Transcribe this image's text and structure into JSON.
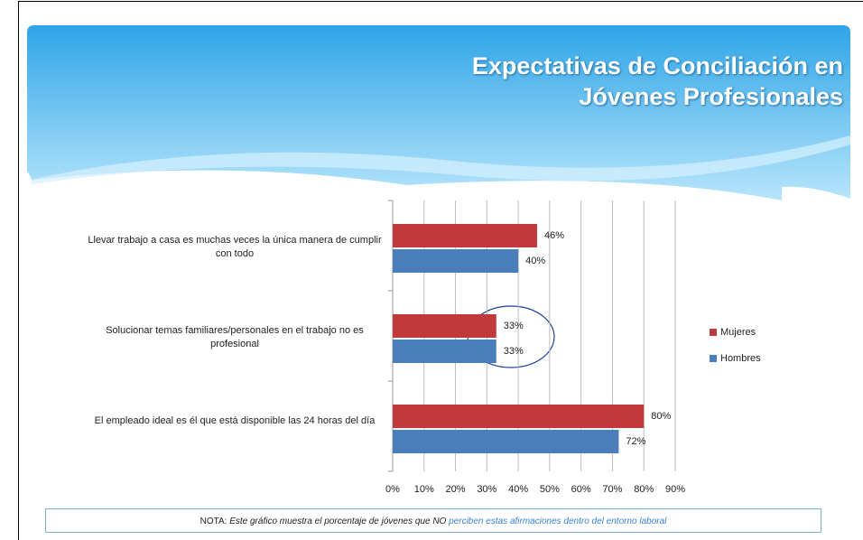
{
  "chart_data": {
    "type": "bar",
    "orientation": "horizontal",
    "title": "Expectativas de Conciliación en Jóvenes Profesionales",
    "categories": [
      "Llevar trabajo a casa es muchas veces la única manera de cumplir con todo",
      "Solucionar temas familiares/personales en el trabajo no es profesional",
      "El empleado ideal es él que está disponible las 24 horas del día"
    ],
    "series": [
      {
        "name": "Mujeres",
        "color": "#c0393b",
        "values": [
          46,
          33,
          80
        ],
        "value_labels": [
          "46%",
          "33%",
          "80%"
        ]
      },
      {
        "name": "Hombres",
        "color": "#4a7ebb",
        "values": [
          40,
          33,
          72
        ],
        "value_labels": [
          "40%",
          "33%",
          "72%"
        ]
      }
    ],
    "xlim": [
      0,
      90
    ],
    "xticks": [
      {
        "value": 0,
        "label": "0%"
      },
      {
        "value": 10,
        "label": "10%"
      },
      {
        "value": 20,
        "label": "20%"
      },
      {
        "value": 30,
        "label": "30%"
      },
      {
        "value": 40,
        "label": "40%"
      },
      {
        "value": 50,
        "label": "50%"
      },
      {
        "value": 60,
        "label": "60%"
      },
      {
        "value": 70,
        "label": "70%"
      },
      {
        "value": 80,
        "label": "80%"
      },
      {
        "value": 90,
        "label": "90%"
      }
    ],
    "grid": true,
    "legend": "right",
    "note": {
      "label": "NOTA:",
      "text": "Este gráfico muestra el porcentaje de jóvenes  que NO",
      "highlight": "perciben estas afirmaciones dentro del entorno laboral"
    }
  }
}
